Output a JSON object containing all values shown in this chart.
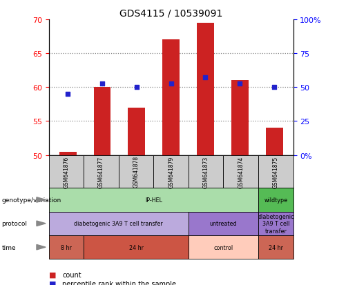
{
  "title": "GDS4115 / 10539091",
  "samples": [
    "GSM641876",
    "GSM641877",
    "GSM641878",
    "GSM641879",
    "GSM641873",
    "GSM641874",
    "GSM641875"
  ],
  "bar_values": [
    50.5,
    60.0,
    57.0,
    67.0,
    69.5,
    61.0,
    54.0
  ],
  "percentile_values": [
    59.0,
    60.5,
    60.0,
    60.5,
    61.5,
    60.5,
    60.0
  ],
  "ylim_left": [
    50,
    70
  ],
  "ylim_right": [
    0,
    100
  ],
  "yticks_left": [
    50,
    55,
    60,
    65,
    70
  ],
  "yticks_right": [
    0,
    25,
    50,
    75,
    100
  ],
  "ytick_labels_right": [
    "0%",
    "25",
    "50",
    "75",
    "100%"
  ],
  "bar_color": "#cc2222",
  "percentile_color": "#2222cc",
  "bar_bottom": 50,
  "genotype_cells": [
    {
      "text": "IP-HEL",
      "span": 6,
      "color": "#aaddaa"
    },
    {
      "text": "wildtype",
      "span": 1,
      "color": "#55bb55"
    }
  ],
  "protocol_cells": [
    {
      "text": "diabetogenic 3A9 T cell transfer",
      "span": 4,
      "color": "#bbaadd"
    },
    {
      "text": "untreated",
      "span": 2,
      "color": "#9977cc"
    },
    {
      "text": "diabetogenic\n3A9 T cell\ntransfer",
      "span": 1,
      "color": "#9977cc"
    }
  ],
  "time_cells": [
    {
      "text": "8 hr",
      "span": 1,
      "color": "#cc6655"
    },
    {
      "text": "24 hr",
      "span": 3,
      "color": "#cc5544"
    },
    {
      "text": "control",
      "span": 2,
      "color": "#ffccbb"
    },
    {
      "text": "24 hr",
      "span": 1,
      "color": "#cc6655"
    }
  ],
  "sample_bg_color": "#cccccc",
  "row_labels": [
    "genotype/variation",
    "protocol",
    "time"
  ],
  "legend_count_color": "#cc2222",
  "legend_percentile_color": "#2222cc"
}
